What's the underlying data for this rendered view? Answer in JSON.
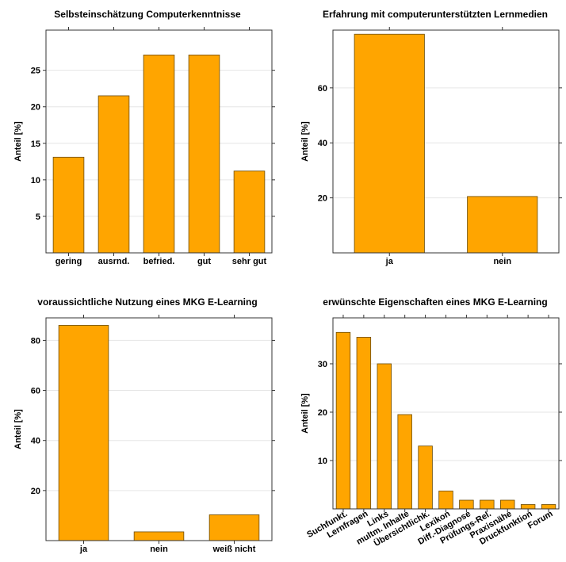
{
  "bar_color": "#FFA500",
  "chart_data": [
    {
      "type": "bar",
      "title": "Selbsteinschätzung Computerkenntnisse",
      "ylabel": "Anteil [%]",
      "categories": [
        "gering",
        "ausrnd.",
        "befried.",
        "gut",
        "sehr gut"
      ],
      "values": [
        13.1,
        21.5,
        27.1,
        27.1,
        11.2
      ],
      "ylim": [
        0,
        30.5
      ],
      "yticks": [
        5,
        10,
        15,
        20,
        25
      ],
      "rotate_labels": false
    },
    {
      "type": "bar",
      "title": "Erfahrung mit computerunterstützten Lernmedien",
      "ylabel": "Anteil [%]",
      "categories": [
        "ja",
        "nein"
      ],
      "values": [
        79.5,
        20.5
      ],
      "ylim": [
        0,
        81
      ],
      "yticks": [
        20,
        40,
        60
      ],
      "rotate_labels": false
    },
    {
      "type": "bar",
      "title": "voraussichtliche Nutzung eines MKG E-Learning",
      "ylabel": "Anteil [%]",
      "categories": [
        "ja",
        "nein",
        "weiß nicht"
      ],
      "values": [
        86,
        3.5,
        10.3
      ],
      "ylim": [
        0,
        89
      ],
      "yticks": [
        20,
        40,
        60,
        80
      ],
      "rotate_labels": false
    },
    {
      "type": "bar",
      "title": "erwünschte Eigenschaften eines MKG E-Learning",
      "ylabel": "Anteil [%]",
      "categories": [
        "Suchfunkt.",
        "Lernfragen",
        "Links",
        "multm. Inhalte",
        "Übersichtlichk.",
        "Lexikon",
        "Diff.-Diagnose",
        "Prüfungs-Rel.",
        "Praxisnähe",
        "Druckfunktion",
        "Forum"
      ],
      "values": [
        36.5,
        35.5,
        30,
        19.5,
        13,
        3.7,
        1.8,
        1.8,
        1.8,
        0.9,
        0.9
      ],
      "ylim": [
        0,
        39.5
      ],
      "yticks": [
        10,
        20,
        30
      ],
      "rotate_labels": true
    }
  ]
}
